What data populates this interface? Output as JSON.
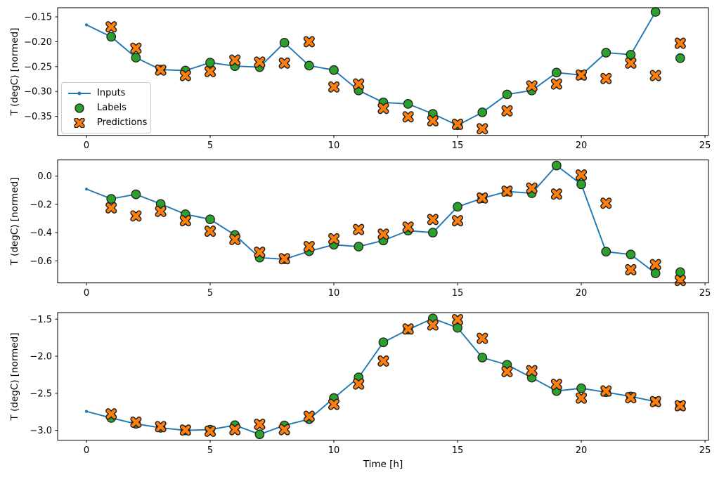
{
  "figure": {
    "xlabel": "Time [h]",
    "ylabel": "T (degC) [normed]",
    "accent_colors": {
      "inputs_line": "#1f77b4",
      "labels_marker": "#2ca02c",
      "predictions_marker": "#ff7f0e",
      "marker_edge": "#1f1f1f"
    },
    "legend": {
      "items": [
        {
          "label": "Inputs",
          "type": "line-dot",
          "color": "#1f77b4"
        },
        {
          "label": "Labels",
          "type": "circle",
          "color": "#2ca02c"
        },
        {
          "label": "Predictions",
          "type": "x",
          "color": "#ff7f0e"
        }
      ]
    }
  },
  "chart_data": [
    {
      "type": "line",
      "title": "",
      "xlabel": "",
      "ylabel": "T (degC) [normed]",
      "grid": false,
      "legend_position": "upper-left-inside (subplot 1 only)",
      "xlim": [
        -1.165,
        25.14
      ],
      "xticks": [
        0,
        5,
        10,
        15,
        20,
        25
      ],
      "xtick_labels": [
        "0",
        "5",
        "10",
        "15",
        "20",
        "25"
      ],
      "ylim": [
        -0.3883,
        -0.1316
      ],
      "yticks": [
        -0.15,
        -0.2,
        -0.25,
        -0.3,
        -0.35
      ],
      "ytick_labels": [
        "−0.15",
        "−0.20",
        "−0.25",
        "−0.30",
        "−0.35"
      ],
      "series": [
        {
          "name": "Inputs",
          "type": "line",
          "marker": "dot",
          "color": "#1f77b4",
          "x": [
            0,
            1,
            2,
            3,
            4,
            5,
            6,
            7,
            8,
            9,
            10,
            11,
            12,
            13,
            14,
            15,
            16,
            17,
            18,
            19,
            20,
            21,
            22,
            23
          ],
          "y": [
            -0.166,
            -0.19,
            -0.232,
            -0.256,
            -0.258,
            -0.242,
            -0.249,
            -0.251,
            -0.202,
            -0.248,
            -0.257,
            -0.298,
            -0.322,
            -0.325,
            -0.345,
            -0.368,
            -0.342,
            -0.306,
            -0.298,
            -0.262,
            -0.267,
            -0.222,
            -0.226,
            -0.14
          ]
        },
        {
          "name": "Labels",
          "type": "scatter",
          "marker": "circle",
          "color": "#2ca02c",
          "x": [
            1,
            2,
            3,
            4,
            5,
            6,
            7,
            8,
            9,
            10,
            11,
            12,
            13,
            14,
            15,
            16,
            17,
            18,
            19,
            20,
            21,
            22,
            23,
            24
          ],
          "y": [
            -0.19,
            -0.232,
            -0.256,
            -0.258,
            -0.242,
            -0.249,
            -0.251,
            -0.202,
            -0.248,
            -0.257,
            -0.298,
            -0.322,
            -0.325,
            -0.345,
            -0.368,
            -0.342,
            -0.306,
            -0.298,
            -0.262,
            -0.267,
            -0.222,
            -0.226,
            -0.14,
            -0.233
          ]
        },
        {
          "name": "Predictions",
          "type": "scatter",
          "marker": "x",
          "color": "#ff7f0e",
          "x": [
            1,
            2,
            3,
            4,
            5,
            6,
            7,
            8,
            9,
            10,
            11,
            12,
            13,
            14,
            15,
            16,
            17,
            18,
            19,
            20,
            21,
            22,
            23,
            24
          ],
          "y": [
            -0.17,
            -0.213,
            -0.257,
            -0.268,
            -0.26,
            -0.237,
            -0.241,
            -0.243,
            -0.2,
            -0.291,
            -0.285,
            -0.334,
            -0.351,
            -0.359,
            -0.366,
            -0.375,
            -0.339,
            -0.289,
            -0.285,
            -0.267,
            -0.274,
            -0.243,
            -0.268,
            -0.203
          ]
        }
      ]
    },
    {
      "type": "line",
      "title": "",
      "xlabel": "",
      "ylabel": "T (degC) [normed]",
      "grid": false,
      "xlim": [
        -1.165,
        25.14
      ],
      "xticks": [
        0,
        5,
        10,
        15,
        20,
        25
      ],
      "xtick_labels": [
        "0",
        "5",
        "10",
        "15",
        "20",
        "25"
      ],
      "ylim": [
        -0.7562,
        0.1144
      ],
      "yticks": [
        0.0,
        -0.2,
        -0.4,
        -0.6
      ],
      "ytick_labels": [
        "0.0",
        "−0.2",
        "−0.4",
        "−0.6"
      ],
      "series": [
        {
          "name": "Inputs",
          "type": "line",
          "marker": "dot",
          "color": "#1f77b4",
          "x": [
            0,
            1,
            2,
            3,
            4,
            5,
            6,
            7,
            8,
            9,
            10,
            11,
            12,
            13,
            14,
            15,
            16,
            17,
            18,
            19,
            20,
            21,
            22,
            23
          ],
          "y": [
            -0.092,
            -0.161,
            -0.129,
            -0.197,
            -0.27,
            -0.306,
            -0.417,
            -0.577,
            -0.589,
            -0.532,
            -0.486,
            -0.499,
            -0.456,
            -0.386,
            -0.4,
            -0.217,
            -0.157,
            -0.109,
            -0.121,
            0.075,
            -0.058,
            -0.535,
            -0.555,
            -0.688
          ]
        },
        {
          "name": "Labels",
          "type": "scatter",
          "marker": "circle",
          "color": "#2ca02c",
          "x": [
            1,
            2,
            3,
            4,
            5,
            6,
            7,
            8,
            9,
            10,
            11,
            12,
            13,
            14,
            15,
            16,
            17,
            18,
            19,
            20,
            21,
            22,
            23,
            24
          ],
          "y": [
            -0.161,
            -0.129,
            -0.197,
            -0.27,
            -0.306,
            -0.417,
            -0.577,
            -0.589,
            -0.532,
            -0.486,
            -0.499,
            -0.456,
            -0.386,
            -0.4,
            -0.217,
            -0.157,
            -0.109,
            -0.121,
            0.075,
            -0.058,
            -0.535,
            -0.555,
            -0.688,
            -0.68
          ]
        },
        {
          "name": "Predictions",
          "type": "scatter",
          "marker": "x",
          "color": "#ff7f0e",
          "x": [
            1,
            2,
            3,
            4,
            5,
            6,
            7,
            8,
            9,
            10,
            11,
            12,
            13,
            14,
            15,
            16,
            17,
            18,
            19,
            20,
            21,
            22,
            23,
            24
          ],
          "y": [
            -0.225,
            -0.282,
            -0.25,
            -0.316,
            -0.39,
            -0.449,
            -0.539,
            -0.585,
            -0.499,
            -0.444,
            -0.378,
            -0.411,
            -0.361,
            -0.307,
            -0.316,
            -0.155,
            -0.107,
            -0.085,
            -0.127,
            0.008,
            -0.192,
            -0.663,
            -0.627,
            -0.739
          ]
        }
      ]
    },
    {
      "type": "line",
      "title": "",
      "xlabel": "Time [h]",
      "ylabel": "T (degC) [normed]",
      "grid": false,
      "xlim": [
        -1.165,
        25.14
      ],
      "xticks": [
        0,
        5,
        10,
        15,
        20,
        25
      ],
      "xtick_labels": [
        "0",
        "5",
        "10",
        "15",
        "20",
        "25"
      ],
      "ylim": [
        -3.133,
        -1.412
      ],
      "yticks": [
        -1.5,
        -2.0,
        -2.5,
        -3.0
      ],
      "ytick_labels": [
        "−1.5",
        "−2.0",
        "−2.5",
        "−3.0"
      ],
      "series": [
        {
          "name": "Inputs",
          "type": "line",
          "marker": "dot",
          "color": "#1f77b4",
          "x": [
            0,
            1,
            2,
            3,
            4,
            5,
            6,
            7,
            8,
            9,
            10,
            11,
            12,
            13,
            14,
            15,
            16,
            17,
            18,
            19,
            20,
            21,
            22,
            23
          ],
          "y": [
            -2.744,
            -2.832,
            -2.911,
            -2.965,
            -3.0,
            -2.99,
            -2.93,
            -3.053,
            -2.933,
            -2.848,
            -2.564,
            -2.286,
            -1.812,
            -1.642,
            -1.49,
            -1.617,
            -2.018,
            -2.115,
            -2.289,
            -2.469,
            -2.432,
            -2.485,
            -2.542,
            -2.612
          ]
        },
        {
          "name": "Labels",
          "type": "scatter",
          "marker": "circle",
          "color": "#2ca02c",
          "x": [
            1,
            2,
            3,
            4,
            5,
            6,
            7,
            8,
            9,
            10,
            11,
            12,
            13,
            14,
            15,
            16,
            17,
            18,
            19,
            20,
            21,
            22,
            23,
            24
          ],
          "y": [
            -2.832,
            -2.911,
            -2.965,
            -3.0,
            -2.99,
            -2.93,
            -3.053,
            -2.933,
            -2.848,
            -2.564,
            -2.286,
            -1.812,
            -1.642,
            -1.49,
            -1.617,
            -2.018,
            -2.115,
            -2.289,
            -2.469,
            -2.432,
            -2.485,
            -2.542,
            -2.612,
            -2.668
          ]
        },
        {
          "name": "Predictions",
          "type": "scatter",
          "marker": "x",
          "color": "#ff7f0e",
          "x": [
            1,
            2,
            3,
            4,
            5,
            6,
            7,
            8,
            9,
            10,
            11,
            12,
            13,
            14,
            15,
            16,
            17,
            18,
            19,
            20,
            21,
            22,
            23,
            24
          ],
          "y": [
            -2.778,
            -2.889,
            -2.949,
            -2.995,
            -3.012,
            -2.99,
            -2.917,
            -2.99,
            -2.81,
            -2.649,
            -2.375,
            -2.065,
            -1.633,
            -1.579,
            -1.507,
            -1.759,
            -2.207,
            -2.195,
            -2.38,
            -2.564,
            -2.469,
            -2.56,
            -2.612,
            -2.668
          ]
        }
      ]
    }
  ]
}
